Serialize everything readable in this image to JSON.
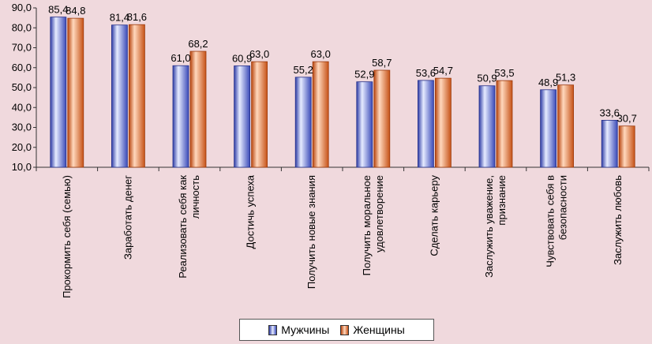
{
  "chart_data": {
    "type": "bar",
    "categories": [
      [
        "Прокормить себя (семью)"
      ],
      [
        "Заработать денег"
      ],
      [
        "Реализовать себя как",
        "личность"
      ],
      [
        "Достичь успеха"
      ],
      [
        "Получить новые знания"
      ],
      [
        "Получить моральное",
        "удовлетворение"
      ],
      [
        "Сделать карьеру"
      ],
      [
        "Заслужить уважение,",
        "признание"
      ],
      [
        "Чувствовать себя в",
        "безопасности"
      ],
      [
        "Заслужить любовь"
      ]
    ],
    "series": [
      {
        "name": "Мужчины",
        "values": [
          85.4,
          81.4,
          61.0,
          60.9,
          55.2,
          52.9,
          53.6,
          50.9,
          48.9,
          33.6
        ]
      },
      {
        "name": "Женщины",
        "values": [
          84.8,
          81.6,
          68.2,
          63.0,
          63.0,
          58.7,
          54.7,
          53.5,
          51.3,
          30.7
        ]
      }
    ],
    "ylim": [
      10,
      90
    ],
    "yticks": [
      "10,0",
      "20,0",
      "30,0",
      "40,0",
      "50,0",
      "60,0",
      "70,0",
      "80,0",
      "90,0"
    ],
    "ytick_values": [
      10,
      20,
      30,
      40,
      50,
      60,
      70,
      80,
      90
    ],
    "legend_position": "bottom",
    "colors": {
      "men_light": "#dfe5ff",
      "men_dark": "#3746b4",
      "women_light": "#ffd2b4",
      "women_dark": "#c24e17"
    }
  }
}
